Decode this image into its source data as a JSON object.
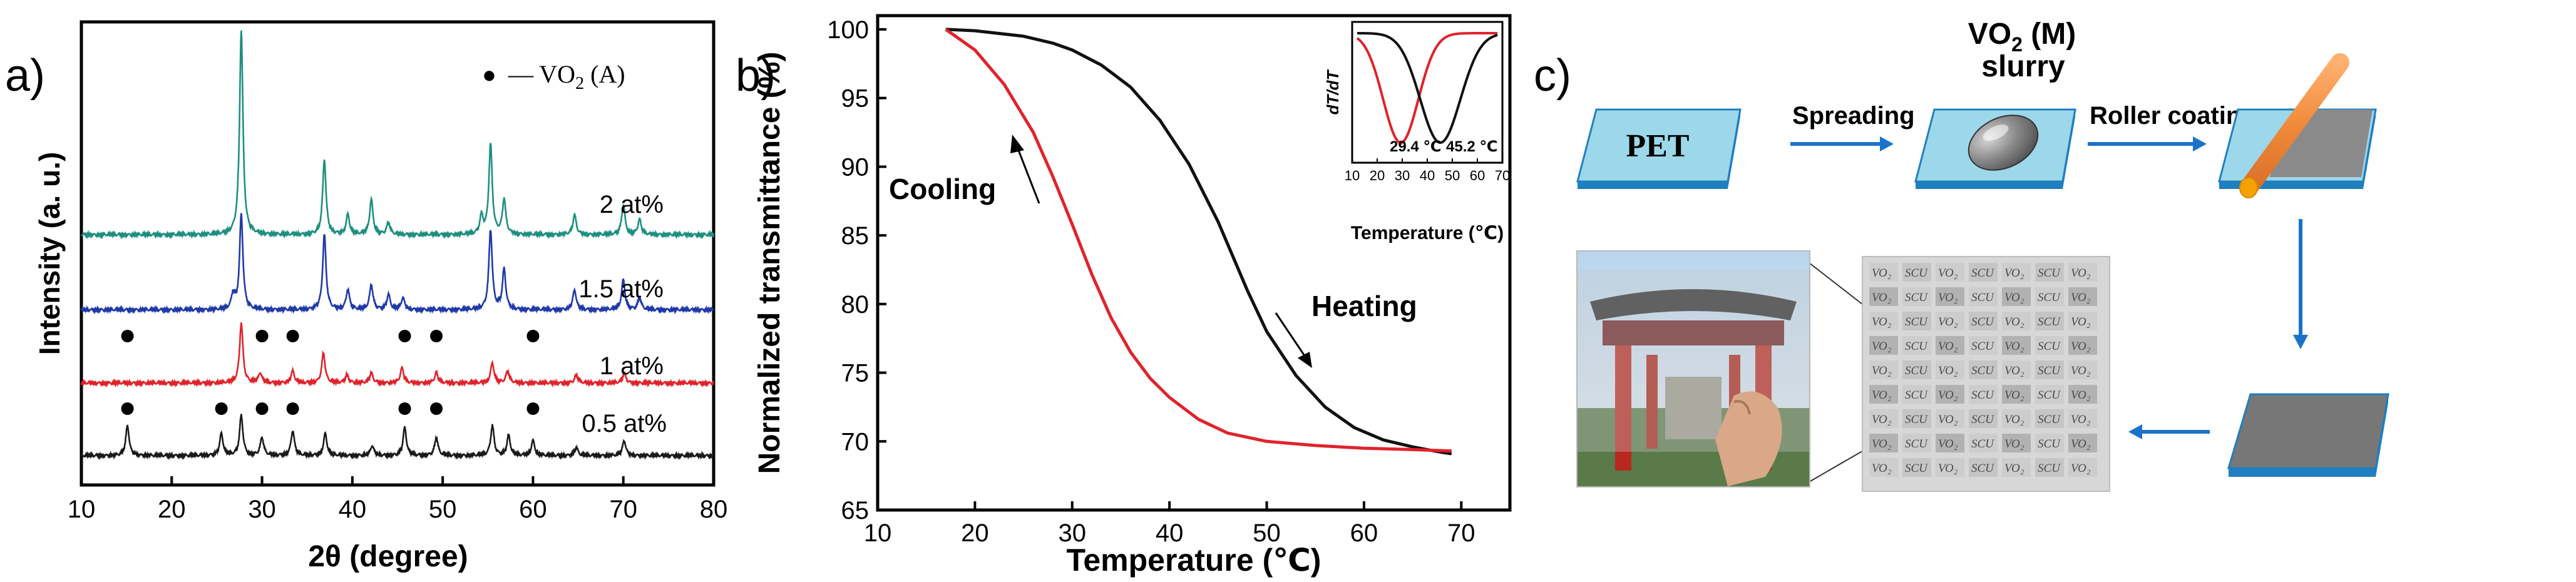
{
  "chart_data": [
    {
      "panel": "a)",
      "type": "line",
      "title": "",
      "xlabel": "2θ (degree)",
      "ylabel": "Intensity (a. u.)",
      "xlim": [
        10,
        80
      ],
      "xticks": [
        10,
        20,
        30,
        40,
        50,
        60,
        70,
        80
      ],
      "legend": {
        "marker": "●",
        "text": "— VO",
        "sub": "2",
        "suffix": " (A)"
      },
      "series": [
        {
          "name": "0.5 at%",
          "color": "#1a1a1a",
          "offset": 0,
          "peaks": [
            [
              15.1,
              0.3
            ],
            [
              25.5,
              0.22
            ],
            [
              27.7,
              0.4
            ],
            [
              30.0,
              0.18
            ],
            [
              33.4,
              0.25
            ],
            [
              37.0,
              0.22
            ],
            [
              42.2,
              0.1
            ],
            [
              45.8,
              0.28
            ],
            [
              49.3,
              0.18
            ],
            [
              55.5,
              0.3
            ],
            [
              57.3,
              0.2
            ],
            [
              60.0,
              0.15
            ],
            [
              64.8,
              0.08
            ],
            [
              70.1,
              0.15
            ]
          ],
          "markers": [
            15.1,
            25.5,
            30.0,
            33.4,
            45.8,
            49.3,
            60.0
          ]
        },
        {
          "name": "1 at%",
          "color": "#e0232b",
          "offset": 1,
          "peaks": [
            [
              27.7,
              0.6
            ],
            [
              29.8,
              0.1
            ],
            [
              33.4,
              0.12
            ],
            [
              36.8,
              0.3
            ],
            [
              39.4,
              0.08
            ],
            [
              42.1,
              0.1
            ],
            [
              45.5,
              0.15
            ],
            [
              49.3,
              0.1
            ],
            [
              55.5,
              0.2
            ],
            [
              57.2,
              0.12
            ],
            [
              64.8,
              0.08
            ],
            [
              70.1,
              0.1
            ]
          ],
          "markers": [
            15.1,
            30.0,
            33.4,
            45.8,
            49.3,
            60.0
          ]
        },
        {
          "name": "1.5 at%",
          "color": "#1f3aa8",
          "offset": 2,
          "peaks": [
            [
              26.8,
              0.15
            ],
            [
              27.7,
              0.95
            ],
            [
              36.9,
              0.75
            ],
            [
              39.5,
              0.2
            ],
            [
              42.1,
              0.25
            ],
            [
              44.0,
              0.15
            ],
            [
              45.6,
              0.12
            ],
            [
              55.3,
              0.8
            ],
            [
              56.8,
              0.4
            ],
            [
              64.6,
              0.2
            ],
            [
              70.0,
              0.3
            ],
            [
              71.8,
              0.12
            ]
          ],
          "markers": []
        },
        {
          "name": "2 at%",
          "color": "#1d8f80",
          "offset": 3,
          "peaks": [
            [
              27.7,
              2.05
            ],
            [
              36.9,
              0.75
            ],
            [
              39.5,
              0.2
            ],
            [
              42.1,
              0.35
            ],
            [
              44.0,
              0.12
            ],
            [
              54.3,
              0.18
            ],
            [
              55.3,
              0.9
            ],
            [
              56.8,
              0.35
            ],
            [
              64.6,
              0.2
            ],
            [
              70.0,
              0.3
            ],
            [
              71.8,
              0.15
            ]
          ],
          "markers": []
        }
      ]
    },
    {
      "panel": "b)",
      "type": "line",
      "title": "",
      "xlabel": "Temperature (℃)",
      "ylabel": "Normalized transmittance (%)",
      "xlim": [
        10,
        75
      ],
      "ylim": [
        65,
        101
      ],
      "xticks": [
        10,
        20,
        30,
        40,
        50,
        60,
        70
      ],
      "yticks": [
        65,
        70,
        75,
        80,
        85,
        90,
        95,
        100
      ],
      "series": [
        {
          "name": "Heating",
          "color": "#111111",
          "x": [
            17,
            20,
            25,
            28,
            30,
            33,
            36,
            39,
            42,
            45,
            48,
            50,
            53,
            56,
            59,
            62,
            65,
            68,
            69
          ],
          "y": [
            100,
            99.9,
            99.5,
            99.0,
            98.5,
            97.4,
            95.8,
            93.4,
            90.2,
            86.0,
            81.0,
            78.0,
            74.8,
            72.5,
            71.0,
            70.1,
            69.6,
            69.2,
            69.1
          ]
        },
        {
          "name": "Cooling",
          "color": "#e0232b",
          "x": [
            17,
            20,
            23,
            26,
            28,
            30,
            32,
            34,
            36,
            38,
            40,
            43,
            46,
            50,
            55,
            60,
            65,
            69
          ],
          "y": [
            100,
            98.5,
            96.0,
            92.5,
            89.3,
            85.8,
            82.2,
            79.0,
            76.5,
            74.6,
            73.2,
            71.6,
            70.6,
            70.0,
            69.7,
            69.5,
            69.4,
            69.3
          ]
        }
      ],
      "annotations": [
        "Cooling",
        "Heating"
      ],
      "inset": {
        "ylabel": "dT/dT",
        "xlabel": "Temperature (℃)",
        "xlim": [
          10,
          70
        ],
        "xticks": [
          10,
          20,
          30,
          40,
          50,
          60,
          70
        ],
        "cooling_peak": 29.4,
        "heating_peak": 45.2,
        "cooling_peak_label": "29.4 ℃",
        "heating_peak_label": "45.2 ℃"
      }
    }
  ],
  "panel_c": {
    "label": "c)",
    "pet_label": "PET",
    "slurry_title_prefix": "VO",
    "slurry_title_sub": "2",
    "slurry_title_suffix": " (M)",
    "slurry_title_line2": "slurry",
    "step1": "Spreading",
    "step2": "Roller coating",
    "pattern_words": [
      "VO₂",
      "SCU",
      "VO₂",
      "SCU",
      "VO₂",
      "SCU",
      "VO₂"
    ],
    "colors": {
      "substrate": "#9dd7ea",
      "edge": "#1f7fbf",
      "film": "#8a8a8a",
      "roller": "#f0944a",
      "arrow": "#1a73c9"
    }
  }
}
